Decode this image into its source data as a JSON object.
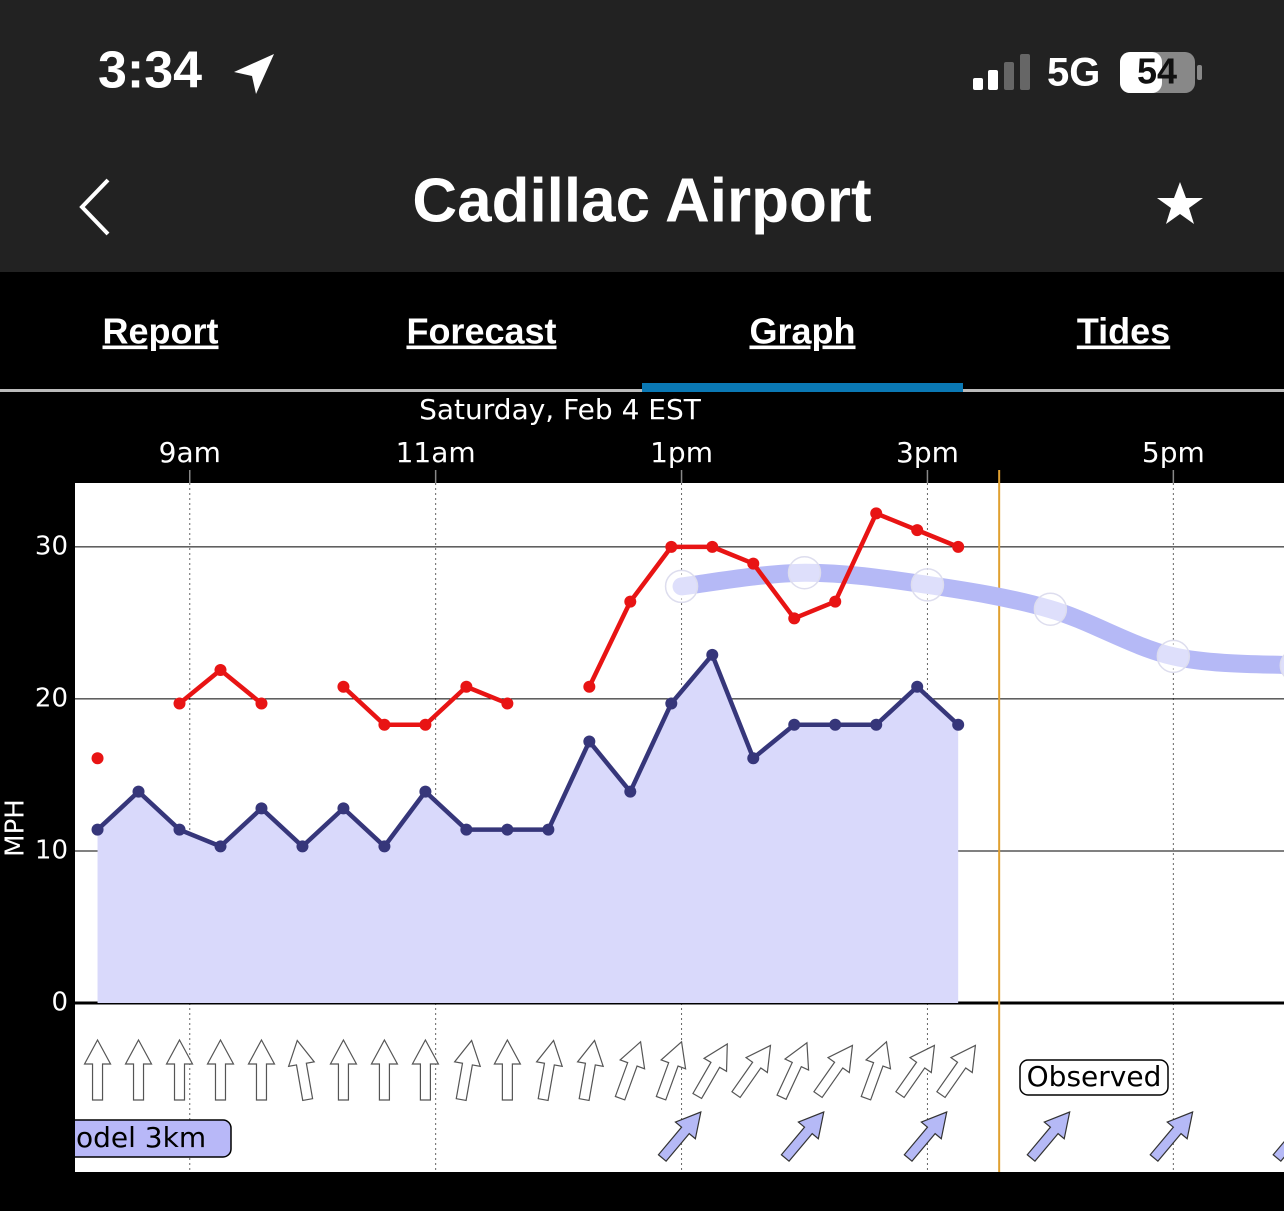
{
  "status_bar": {
    "time": "3:34",
    "network": "5G",
    "battery": "54"
  },
  "header": {
    "title": "Cadillac Airport"
  },
  "tabs": [
    "Report",
    "Forecast",
    "Graph",
    "Tides"
  ],
  "active_tab": 2,
  "chart_data": {
    "type": "line",
    "title": "Saturday, Feb 4 EST",
    "y_label": "MPH",
    "x": [
      495,
      515,
      535,
      555,
      575,
      595,
      615,
      635,
      655,
      675,
      695,
      715,
      735,
      755,
      775,
      795,
      815,
      835,
      855,
      875,
      895,
      915
    ],
    "xlim": [
      484,
      1074
    ],
    "xticks": [
      {
        "value": 540,
        "label": "9am"
      },
      {
        "value": 660,
        "label": "11am"
      },
      {
        "value": 780,
        "label": "1pm"
      },
      {
        "value": 900,
        "label": "3pm"
      },
      {
        "value": 1020,
        "label": "5pm"
      }
    ],
    "ylim": [
      0,
      34.2
    ],
    "yticks": [
      0,
      10,
      20,
      30
    ],
    "grid": true,
    "now": 935,
    "now_color": "#e0a030",
    "series": [
      {
        "color": "#36367a",
        "fill": "#d9d9fb",
        "values": [
          11.4,
          13.9,
          11.4,
          10.3,
          12.8,
          10.3,
          12.8,
          10.3,
          13.9,
          11.4,
          11.4,
          11.4,
          17.2,
          13.9,
          19.7,
          22.9,
          16.1,
          18.3,
          18.3,
          18.3,
          20.8,
          18.3
        ],
        "directions": [
          0,
          0,
          0,
          0,
          0,
          -10,
          0,
          0,
          0,
          10,
          0,
          10,
          10,
          20,
          20,
          30,
          35,
          25,
          35,
          20,
          35,
          35
        ]
      },
      {
        "color": "#e81414",
        "values": [
          16.1,
          null,
          19.7,
          21.9,
          19.7,
          null,
          20.8,
          18.3,
          18.3,
          20.8,
          19.7,
          null,
          20.8,
          26.4,
          30,
          30,
          28.9,
          25.3,
          26.4,
          32.2,
          31.1,
          30
        ]
      },
      {
        "color": "#b5b9f6",
        "x": [
          780,
          840,
          900,
          960,
          1020,
          1080
        ],
        "values": [
          27.4,
          28.3,
          27.5,
          25.9,
          22.8,
          22.2
        ],
        "directions": [
          40,
          40,
          40,
          40,
          40,
          40
        ]
      }
    ],
    "labels": {
      "observed": "Observed",
      "model": "odel  3km"
    }
  }
}
